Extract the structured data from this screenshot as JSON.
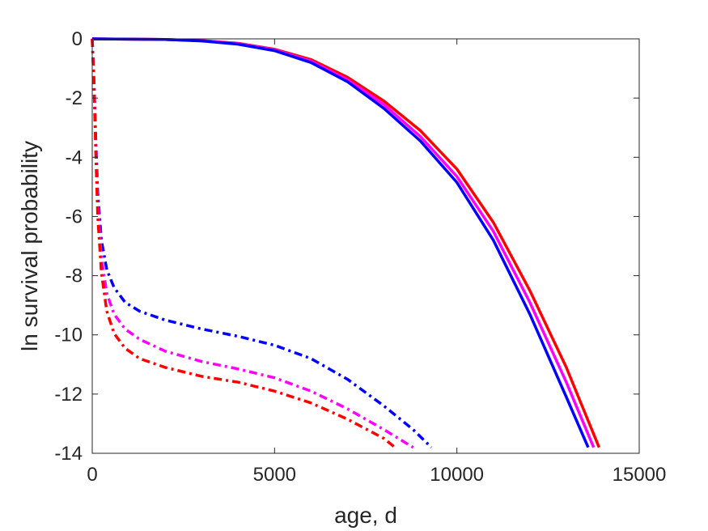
{
  "chart_data": {
    "type": "line",
    "title": "",
    "xlabel": "age, d",
    "ylabel": "ln survival probability",
    "xlim": [
      0,
      15000
    ],
    "ylim": [
      -14,
      0
    ],
    "xticks": [
      0,
      5000,
      10000,
      15000
    ],
    "yticks": [
      0,
      -2,
      -4,
      -6,
      -8,
      -10,
      -12,
      -14
    ],
    "xtick_labels": [
      "0",
      "5000",
      "10000",
      "15000"
    ],
    "ytick_labels": [
      "0",
      "-2",
      "-4",
      "-6",
      "-8",
      "-10",
      "-12",
      "-14"
    ],
    "grid": false,
    "legend": "none",
    "series": [
      {
        "color": "#ff0000",
        "style": "solid",
        "x": [
          0,
          2000,
          3000,
          4000,
          5000,
          6000,
          7000,
          8000,
          9000,
          10000,
          11000,
          12000,
          13000,
          13900
        ],
        "y": [
          0,
          -0.02,
          -0.06,
          -0.15,
          -0.35,
          -0.7,
          -1.3,
          -2.1,
          -3.1,
          -4.4,
          -6.2,
          -8.5,
          -11.1,
          -13.8
        ]
      },
      {
        "color": "#ff00ff",
        "style": "solid",
        "x": [
          0,
          2000,
          3000,
          4000,
          5000,
          6000,
          7000,
          8000,
          9000,
          10000,
          11000,
          12000,
          13000,
          13750
        ],
        "y": [
          0,
          -0.02,
          -0.06,
          -0.16,
          -0.37,
          -0.75,
          -1.38,
          -2.22,
          -3.3,
          -4.65,
          -6.5,
          -8.9,
          -11.6,
          -13.8
        ]
      },
      {
        "color": "#0000ff",
        "style": "solid",
        "x": [
          0,
          2000,
          3000,
          4000,
          5000,
          6000,
          7000,
          8000,
          9000,
          10000,
          11000,
          12000,
          13000,
          13600
        ],
        "y": [
          0,
          -0.02,
          -0.07,
          -0.18,
          -0.4,
          -0.8,
          -1.45,
          -2.35,
          -3.45,
          -4.85,
          -6.8,
          -9.3,
          -12.1,
          -13.8
        ]
      },
      {
        "color": "#0000ff",
        "style": "dashdot",
        "x": [
          0,
          50,
          100,
          150,
          250,
          400,
          600,
          900,
          1300,
          2000,
          3000,
          4000,
          5000,
          6000,
          7000,
          8000,
          8800,
          9300
        ],
        "y": [
          0,
          -1.5,
          -3.5,
          -5.2,
          -6.8,
          -7.8,
          -8.4,
          -8.9,
          -9.2,
          -9.5,
          -9.8,
          -10.05,
          -10.35,
          -10.8,
          -11.5,
          -12.4,
          -13.2,
          -13.8
        ]
      },
      {
        "color": "#ff00ff",
        "style": "dashdot",
        "x": [
          0,
          50,
          100,
          150,
          250,
          400,
          600,
          900,
          1300,
          2000,
          3000,
          4000,
          5000,
          6000,
          7000,
          8000,
          8800
        ],
        "y": [
          0,
          -1.6,
          -3.8,
          -5.6,
          -7.4,
          -8.6,
          -9.3,
          -9.8,
          -10.15,
          -10.55,
          -10.9,
          -11.15,
          -11.45,
          -11.9,
          -12.5,
          -13.2,
          -13.8
        ]
      },
      {
        "color": "#ff0000",
        "style": "dashdot",
        "x": [
          0,
          50,
          100,
          150,
          250,
          400,
          600,
          900,
          1300,
          2000,
          3000,
          4000,
          5000,
          6000,
          7000,
          8000,
          8300
        ],
        "y": [
          0,
          -1.7,
          -4.0,
          -6.0,
          -7.9,
          -9.2,
          -9.95,
          -10.45,
          -10.8,
          -11.1,
          -11.4,
          -11.6,
          -11.9,
          -12.3,
          -12.85,
          -13.5,
          -13.8
        ]
      }
    ]
  }
}
